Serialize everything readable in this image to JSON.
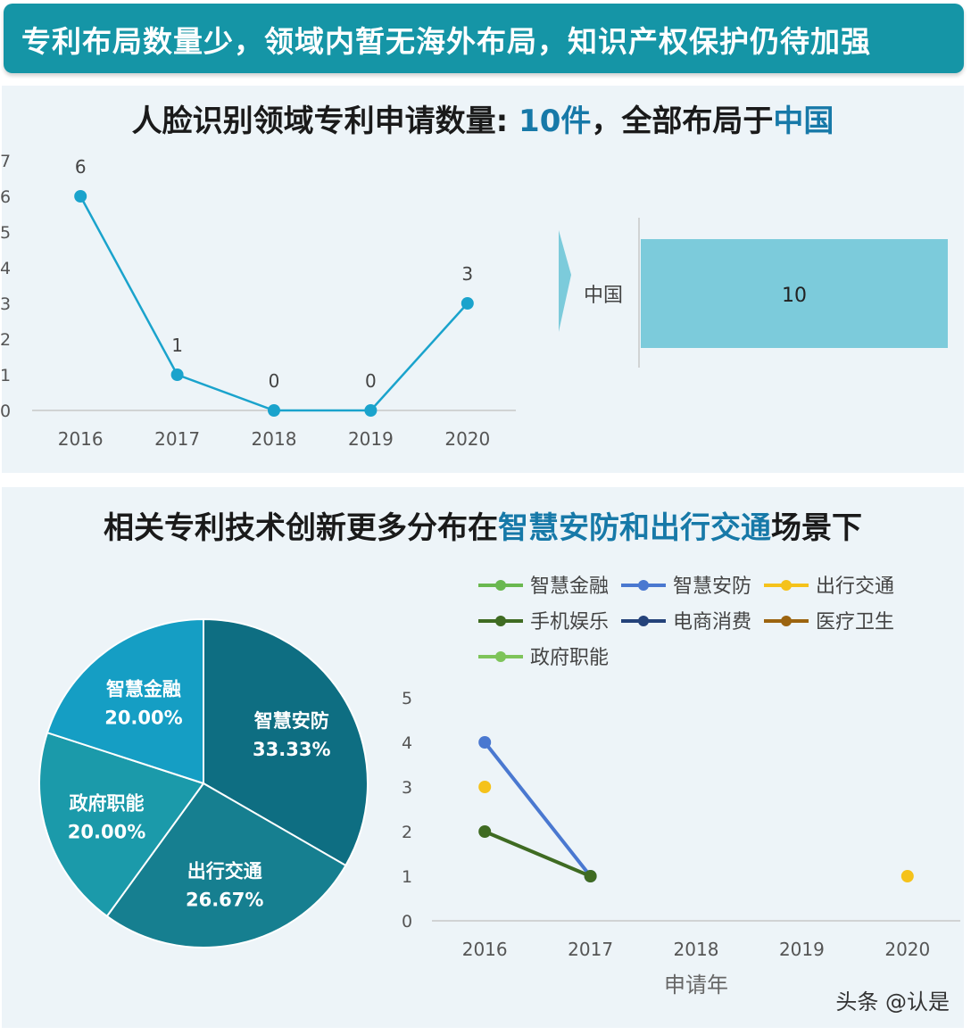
{
  "banner": {
    "text": "专利布局数量少，领域内暂无海外布局，知识产权保护仍待加强"
  },
  "panel1": {
    "title_prefix": "人脸识别领域专利申请数量: ",
    "title_count": "10件",
    "title_mid": "，全部布局于",
    "title_country": "中国"
  },
  "panel2": {
    "title_prefix": "相关专利技术创新更多分布在",
    "title_highlight": "智慧安防和出行交通",
    "title_suffix": "场景下"
  },
  "watermark": "头条 @认是",
  "chart_data": [
    {
      "type": "line",
      "categories": [
        "2016",
        "2017",
        "2018",
        "2019",
        "2020"
      ],
      "values": [
        6,
        1,
        0,
        0,
        3
      ],
      "ylim": [
        0,
        7
      ],
      "yticks": [
        "0",
        "1",
        "2",
        "3",
        "4",
        "5",
        "6",
        "7"
      ],
      "color": "#1aa3cc",
      "data_labels": true
    },
    {
      "type": "bar",
      "orientation": "horizontal",
      "categories": [
        "中国"
      ],
      "values": [
        10
      ],
      "color": "#7ccbdb"
    },
    {
      "type": "pie",
      "slices": [
        {
          "label": "智慧安防",
          "value_label": "33.33%",
          "value": 33.33,
          "color": "#0e6e82"
        },
        {
          "label": "出行交通",
          "value_label": "26.67%",
          "value": 26.67,
          "color": "#167f90"
        },
        {
          "label": "政府职能",
          "value_label": "20.00%",
          "value": 20.0,
          "color": "#1b9aaa"
        },
        {
          "label": "智慧金融",
          "value_label": "20.00%",
          "value": 20.0,
          "color": "#159ec4"
        }
      ]
    },
    {
      "type": "line",
      "categories": [
        "2016",
        "2017",
        "2018",
        "2019",
        "2020"
      ],
      "xlabel": "申请年",
      "ylim": [
        0,
        5
      ],
      "yticks": [
        "0",
        "1",
        "2",
        "3",
        "4",
        "5"
      ],
      "legend_position": "top",
      "series": [
        {
          "name": "智慧金融",
          "color": "#6ab850",
          "values": [
            null,
            null,
            null,
            null,
            null
          ]
        },
        {
          "name": "智慧安防",
          "color": "#4a78d0",
          "values": [
            4,
            1,
            null,
            null,
            null
          ]
        },
        {
          "name": "出行交通",
          "color": "#f5c21b",
          "values": [
            3,
            null,
            null,
            null,
            1
          ]
        },
        {
          "name": "手机娱乐",
          "color": "#3f6b22",
          "values": [
            2,
            1,
            null,
            null,
            null
          ]
        },
        {
          "name": "电商消费",
          "color": "#24427a",
          "values": [
            null,
            null,
            null,
            null,
            null
          ]
        },
        {
          "name": "医疗卫生",
          "color": "#9c6410",
          "values": [
            null,
            null,
            null,
            null,
            null
          ]
        },
        {
          "name": "政府职能",
          "color": "#7ec45a",
          "values": [
            null,
            null,
            null,
            null,
            null
          ]
        }
      ]
    }
  ]
}
